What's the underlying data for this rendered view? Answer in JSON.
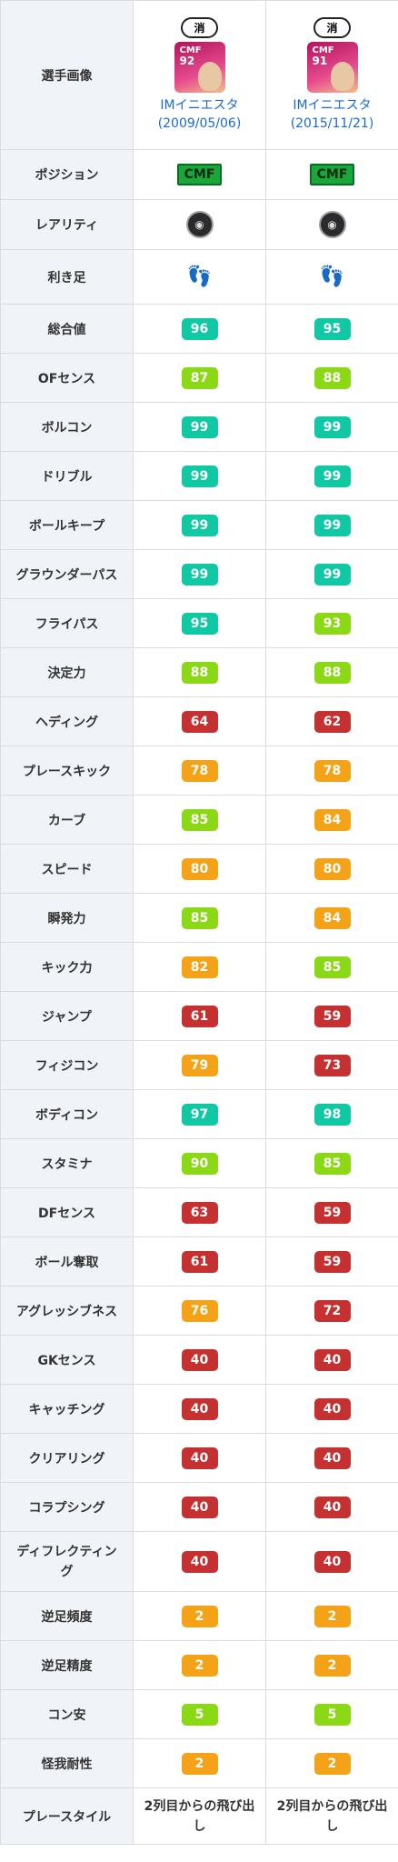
{
  "header": {
    "label": "選手画像",
    "players": [
      {
        "badge": "消",
        "card_pos": "CMF",
        "card_rating": "92",
        "name": "IMイニエスタ(2009/05/06)"
      },
      {
        "badge": "消",
        "card_pos": "CMF",
        "card_rating": "91",
        "name": "IMイニエスタ(2015/11/21)"
      }
    ]
  },
  "position": {
    "label": "ポジション",
    "values": [
      "CMF",
      "CMF"
    ]
  },
  "rarity": {
    "label": "レアリティ",
    "icon": "rarity-icon"
  },
  "foot": {
    "label": "利き足",
    "icon": "feet-icon"
  },
  "stats": [
    {
      "label": "総合値",
      "v1": "96",
      "v2": "95",
      "c1": "teal",
      "c2": "teal"
    },
    {
      "label": "OFセンス",
      "v1": "87",
      "v2": "88",
      "c1": "lime",
      "c2": "lime"
    },
    {
      "label": "ボルコン",
      "v1": "99",
      "v2": "99",
      "c1": "teal",
      "c2": "teal"
    },
    {
      "label": "ドリブル",
      "v1": "99",
      "v2": "99",
      "c1": "teal",
      "c2": "teal"
    },
    {
      "label": "ボールキープ",
      "v1": "99",
      "v2": "99",
      "c1": "teal",
      "c2": "teal"
    },
    {
      "label": "グラウンダーパス",
      "v1": "99",
      "v2": "99",
      "c1": "teal",
      "c2": "teal"
    },
    {
      "label": "フライパス",
      "v1": "95",
      "v2": "93",
      "c1": "teal",
      "c2": "lime"
    },
    {
      "label": "決定力",
      "v1": "88",
      "v2": "88",
      "c1": "lime",
      "c2": "lime"
    },
    {
      "label": "ヘディング",
      "v1": "64",
      "v2": "62",
      "c1": "red",
      "c2": "red"
    },
    {
      "label": "プレースキック",
      "v1": "78",
      "v2": "78",
      "c1": "orange",
      "c2": "orange"
    },
    {
      "label": "カーブ",
      "v1": "85",
      "v2": "84",
      "c1": "lime",
      "c2": "orange"
    },
    {
      "label": "スピード",
      "v1": "80",
      "v2": "80",
      "c1": "orange",
      "c2": "orange"
    },
    {
      "label": "瞬発力",
      "v1": "85",
      "v2": "84",
      "c1": "lime",
      "c2": "orange"
    },
    {
      "label": "キック力",
      "v1": "82",
      "v2": "85",
      "c1": "orange",
      "c2": "lime"
    },
    {
      "label": "ジャンプ",
      "v1": "61",
      "v2": "59",
      "c1": "red",
      "c2": "red"
    },
    {
      "label": "フィジコン",
      "v1": "79",
      "v2": "73",
      "c1": "orange",
      "c2": "red"
    },
    {
      "label": "ボディコン",
      "v1": "97",
      "v2": "98",
      "c1": "teal",
      "c2": "teal"
    },
    {
      "label": "スタミナ",
      "v1": "90",
      "v2": "85",
      "c1": "lime",
      "c2": "lime"
    },
    {
      "label": "DFセンス",
      "v1": "63",
      "v2": "59",
      "c1": "red",
      "c2": "red"
    },
    {
      "label": "ボール奪取",
      "v1": "61",
      "v2": "59",
      "c1": "red",
      "c2": "red"
    },
    {
      "label": "アグレッシブネス",
      "v1": "76",
      "v2": "72",
      "c1": "orange",
      "c2": "red"
    },
    {
      "label": "GKセンス",
      "v1": "40",
      "v2": "40",
      "c1": "red",
      "c2": "red"
    },
    {
      "label": "キャッチング",
      "v1": "40",
      "v2": "40",
      "c1": "red",
      "c2": "red"
    },
    {
      "label": "クリアリング",
      "v1": "40",
      "v2": "40",
      "c1": "red",
      "c2": "red"
    },
    {
      "label": "コラプシング",
      "v1": "40",
      "v2": "40",
      "c1": "red",
      "c2": "red"
    },
    {
      "label": "ディフレクティング",
      "v1": "40",
      "v2": "40",
      "c1": "red",
      "c2": "red"
    },
    {
      "label": "逆足頻度",
      "v1": "2",
      "v2": "2",
      "c1": "orange",
      "c2": "orange"
    },
    {
      "label": "逆足精度",
      "v1": "2",
      "v2": "2",
      "c1": "orange",
      "c2": "orange"
    },
    {
      "label": "コン安",
      "v1": "5",
      "v2": "5",
      "c1": "lime",
      "c2": "lime"
    },
    {
      "label": "怪我耐性",
      "v1": "2",
      "v2": "2",
      "c1": "orange",
      "c2": "orange"
    }
  ],
  "playstyle": {
    "label": "プレースタイル",
    "values": [
      "2列目からの飛び出し",
      "2列目からの飛び出し"
    ]
  }
}
